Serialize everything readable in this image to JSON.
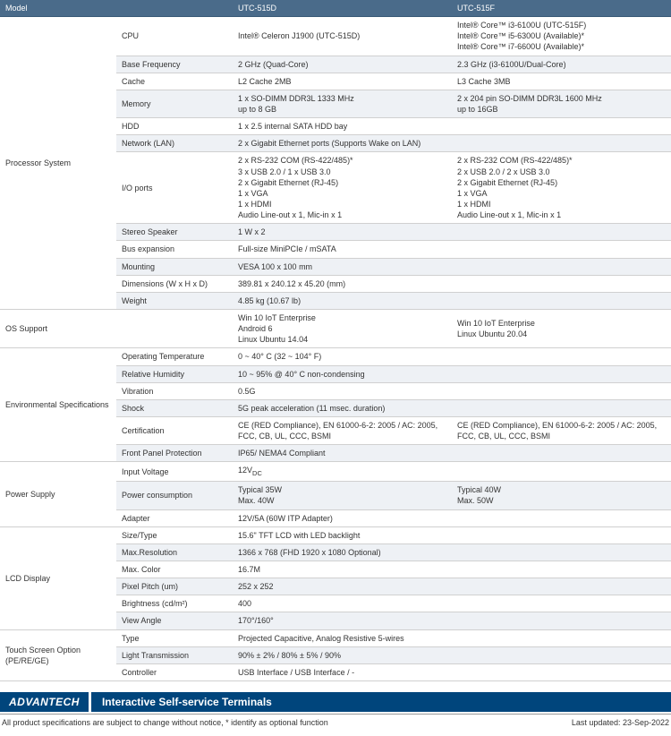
{
  "header": {
    "model_label": "Model",
    "col1": "UTC-515D",
    "col2": "UTC-515F"
  },
  "categories": [
    {
      "name": "Processor System",
      "rows": [
        {
          "attr": "CPU",
          "v1": "Intel® Celeron J1900 (UTC-515D)",
          "v2": "Intel® Core™ i3-6100U (UTC-515F)\nIntel® Core™ i5-6300U (Available)*\nIntel® Core™ i7-6600U (Available)*"
        },
        {
          "attr": "Base Frequency",
          "v1": "2 GHz (Quad-Core)",
          "v2": "2.3 GHz (i3-6100U/Dual-Core)"
        },
        {
          "attr": "Cache",
          "v1": "L2 Cache 2MB",
          "v2": "L3 Cache 3MB"
        },
        {
          "attr": "Memory",
          "v1": "1 x SO-DIMM DDR3L 1333 MHz\nup to 8 GB",
          "v2": "2 x 204 pin SO-DIMM DDR3L 1600 MHz\nup to 16GB"
        },
        {
          "attr": "HDD",
          "v1": "1 x 2.5 internal SATA HDD bay",
          "span": true
        },
        {
          "attr": "Network (LAN)",
          "v1": "2 x Gigabit Ethernet ports (Supports Wake on LAN)",
          "span": true
        },
        {
          "attr": "I/O ports",
          "v1": "2 x RS-232 COM (RS-422/485)*\n3 x USB 2.0 / 1 x USB 3.0\n2 x Gigabit Ethernet (RJ-45)\n1 x VGA\n1 x HDMI\nAudio Line-out x 1, Mic-in x 1",
          "v2": "2 x RS-232 COM (RS-422/485)*\n2 x USB 2.0 / 2 x USB 3.0\n2 x Gigabit Ethernet (RJ-45)\n1 x VGA\n1 x HDMI\nAudio Line-out x 1, Mic-in x 1"
        },
        {
          "attr": "Stereo Speaker",
          "v1": "1 W x 2",
          "span": true
        },
        {
          "attr": "Bus expansion",
          "v1": "Full-size MiniPCIe / mSATA",
          "span": true
        },
        {
          "attr": "Mounting",
          "v1": "VESA 100 x 100 mm",
          "span": true
        },
        {
          "attr": "Dimensions (W x H x D)",
          "v1": "389.81 x 240.12 x 45.20 (mm)",
          "span": true
        },
        {
          "attr": "Weight",
          "v1": "4.85 kg (10.67 lb)",
          "span": true
        }
      ]
    },
    {
      "name": "OS Support",
      "rows": [
        {
          "attr": "",
          "v1": "Win 10 IoT Enterprise\nAndroid 6\nLinux Ubuntu 14.04",
          "v2": "Win 10 IoT Enterprise\nLinux Ubuntu 20.04"
        }
      ]
    },
    {
      "name": "Environmental Specifications",
      "rows": [
        {
          "attr": "Operating Temperature",
          "v1": "0 ~ 40° C (32 ~ 104° F)",
          "span": true
        },
        {
          "attr": "Relative Humidity",
          "v1": "10 ~ 95% @ 40° C non-condensing",
          "span": true
        },
        {
          "attr": "Vibration",
          "v1": "0.5G",
          "span": true
        },
        {
          "attr": "Shock",
          "v1": "5G peak acceleration (11 msec. duration)",
          "span": true
        },
        {
          "attr": "Certification",
          "v1": "CE (RED Compliance), EN 61000-6-2: 2005 / AC: 2005, FCC, CB, UL, CCC, BSMI",
          "v2": "CE (RED Compliance), EN 61000-6-2: 2005 / AC: 2005, FCC, CB, UL, CCC, BSMI"
        },
        {
          "attr": "Front Panel Protection",
          "v1": "IP65/ NEMA4 Compliant",
          "span": true
        }
      ]
    },
    {
      "name": "Power Supply",
      "rows": [
        {
          "attr": "Input Voltage",
          "v1": "12Vₐₑ",
          "span": true,
          "raw": "12V<sub>DC</sub>"
        },
        {
          "attr": "Power consumption",
          "v1": "Typical 35W\nMax. 40W",
          "v2": "Typical 40W\nMax. 50W"
        },
        {
          "attr": "Adapter",
          "v1": "12V/5A (60W ITP Adapter)",
          "span": true
        }
      ]
    },
    {
      "name": "LCD Display",
      "rows": [
        {
          "attr": "Size/Type",
          "v1": "15.6\" TFT LCD with LED backlight",
          "span": true
        },
        {
          "attr": "Max.Resolution",
          "v1": "1366 x 768 (FHD 1920 x 1080 Optional)",
          "span": true
        },
        {
          "attr": "Max. Color",
          "v1": "16.7M",
          "span": true
        },
        {
          "attr": "Pixel Pitch (um)",
          "v1": "252 x 252",
          "span": true
        },
        {
          "attr": "Brightness (cd/m²)",
          "v1": "400",
          "span": true
        },
        {
          "attr": "View Angle",
          "v1": "170°/160°",
          "span": true
        }
      ]
    },
    {
      "name": "Touch Screen Option (PE/RE/GE)",
      "rows": [
        {
          "attr": "Type",
          "v1": "Projected Capacitive, Analog Resistive 5-wires",
          "span": true
        },
        {
          "attr": "Light Transmission",
          "v1": "90% ± 2% / 80% ± 5% / 90%",
          "span": true
        },
        {
          "attr": "Controller",
          "v1": "USB Interface / USB Interface / -",
          "span": true
        }
      ]
    }
  ],
  "footer": {
    "logo": "ADVANTECH",
    "tagline": "Interactive Self-service Terminals",
    "note": "All product specifications are subject to change without notice, * identify as optional function",
    "updated": "Last updated: 23-Sep-2022"
  }
}
